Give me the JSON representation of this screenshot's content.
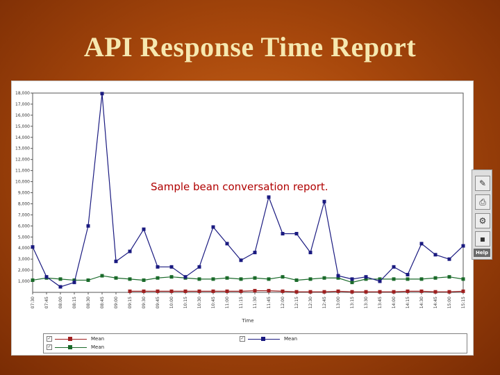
{
  "slide": {
    "title": "API Response Time Report"
  },
  "annotation": "Sample bean conversation report.",
  "toolbar": {
    "buttons": [
      {
        "icon": "chart-edit-icon",
        "glyph": "✎"
      },
      {
        "icon": "print-icon",
        "glyph": "⎙"
      },
      {
        "icon": "settings-icon",
        "glyph": "⚙"
      },
      {
        "icon": "save-icon",
        "glyph": "▪"
      }
    ],
    "help_label": "Help"
  },
  "legend": {
    "items": [
      {
        "label": "Mean",
        "checked": "✓",
        "color": "#a02020"
      },
      {
        "label": "Mean",
        "checked": "✓",
        "color": "#1a6a2a"
      },
      {
        "label": "Mean",
        "checked": "✓",
        "color": "#1a1a80"
      }
    ]
  },
  "chart_data": {
    "type": "line",
    "xlabel": "Time",
    "ylabel": "",
    "ylim": [
      0,
      18000
    ],
    "yticks": [
      "1,000",
      "2,000",
      "3,000",
      "4,000",
      "5,000",
      "6,000",
      "7,000",
      "8,000",
      "9,000",
      "10,000",
      "11,000",
      "12,000",
      "13,000",
      "14,000",
      "15,000",
      "16,000",
      "17,000",
      "18,000"
    ],
    "x": [
      "07:30",
      "07:45",
      "08:00",
      "08:15",
      "08:30",
      "08:45",
      "09:00",
      "09:15",
      "09:30",
      "09:45",
      "10:00",
      "10:15",
      "10:30",
      "10:45",
      "11:00",
      "11:15",
      "11:30",
      "11:45",
      "12:00",
      "12:15",
      "12:30",
      "12:45",
      "13:00",
      "13:15",
      "13:30",
      "13:45",
      "14:00",
      "14:15",
      "14:30",
      "14:45",
      "15:00",
      "15:15"
    ],
    "series": [
      {
        "name": "Mean",
        "color": "#1a1a80",
        "values": [
          4100,
          1400,
          500,
          900,
          6000,
          17950,
          2800,
          3700,
          5700,
          2300,
          2300,
          1400,
          2300,
          5900,
          4400,
          2900,
          3600,
          8600,
          5300,
          5300,
          3600,
          8200,
          1500,
          1200,
          1400,
          1000,
          2300,
          1600,
          4400,
          3400,
          3000,
          4200
        ]
      },
      {
        "name": "Mean",
        "color": "#1a6a2a",
        "values": [
          1100,
          1300,
          1200,
          1100,
          1100,
          1500,
          1300,
          1200,
          1100,
          1300,
          1400,
          1300,
          1200,
          1200,
          1300,
          1200,
          1300,
          1200,
          1400,
          1100,
          1200,
          1300,
          1300,
          900,
          1200,
          1200,
          1200,
          1200,
          1200,
          1300,
          1400,
          1200
        ]
      },
      {
        "name": "Mean",
        "color": "#a02020",
        "values": [
          null,
          null,
          null,
          null,
          null,
          null,
          null,
          100,
          100,
          100,
          100,
          100,
          100,
          100,
          100,
          100,
          150,
          150,
          100,
          50,
          50,
          50,
          100,
          50,
          50,
          50,
          50,
          100,
          100,
          50,
          50,
          100
        ]
      }
    ]
  }
}
